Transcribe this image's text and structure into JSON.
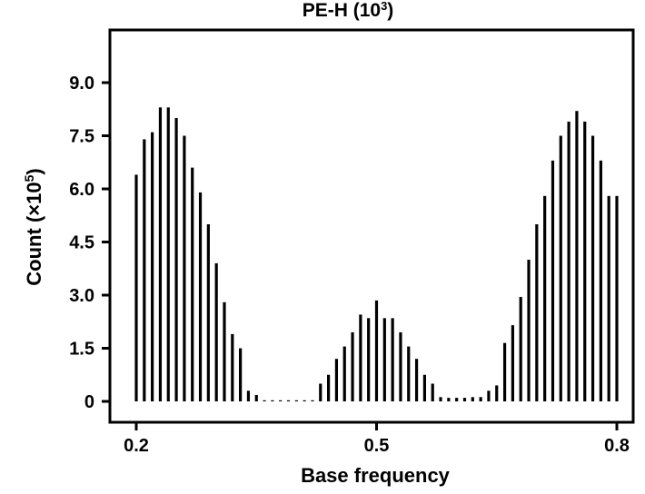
{
  "chart_data": {
    "type": "bar",
    "title": "PE-H (10",
    "title_sup": "3",
    "title_end": ")",
    "xlabel": "Base frequency",
    "ylabel": "Count (×10",
    "ylabel_sup": "5",
    "ylabel_end": ")",
    "xlim": [
      0.2,
      0.8
    ],
    "ylim": [
      0,
      10.2
    ],
    "x_ticks": [
      0.2,
      0.5,
      0.8
    ],
    "x_tick_labels": [
      "0.2",
      "0.5",
      "0.8"
    ],
    "y_ticks": [
      0,
      1.5,
      3.0,
      4.5,
      6.0,
      7.5,
      9.0
    ],
    "y_tick_labels": [
      "0",
      "1.5",
      "3.0",
      "4.5",
      "6.0",
      "7.5",
      "9.0"
    ],
    "grid": false,
    "legend": "none",
    "bar_color": "#000000",
    "x": [
      0.2,
      0.21,
      0.22,
      0.23,
      0.24,
      0.25,
      0.26,
      0.27,
      0.28,
      0.29,
      0.3,
      0.31,
      0.32,
      0.33,
      0.34,
      0.35,
      0.36,
      0.37,
      0.38,
      0.39,
      0.4,
      0.41,
      0.42,
      0.43,
      0.44,
      0.45,
      0.46,
      0.47,
      0.48,
      0.49,
      0.5,
      0.51,
      0.52,
      0.53,
      0.54,
      0.55,
      0.56,
      0.57,
      0.58,
      0.59,
      0.6,
      0.61,
      0.62,
      0.63,
      0.64,
      0.65,
      0.66,
      0.67,
      0.68,
      0.69,
      0.7,
      0.71,
      0.72,
      0.73,
      0.74,
      0.75,
      0.76,
      0.77,
      0.78,
      0.79,
      0.8
    ],
    "values": [
      6.4,
      7.4,
      7.6,
      8.3,
      8.3,
      8.0,
      7.5,
      6.6,
      5.9,
      5.0,
      3.9,
      2.8,
      1.9,
      1.5,
      0.3,
      0.18,
      0.02,
      0.02,
      0.02,
      0.02,
      0.02,
      0.02,
      0.02,
      0.5,
      0.75,
      1.2,
      1.55,
      1.95,
      2.45,
      2.35,
      2.85,
      2.35,
      2.35,
      1.95,
      1.55,
      1.2,
      0.75,
      0.5,
      0.12,
      0.1,
      0.1,
      0.1,
      0.12,
      0.12,
      0.3,
      0.45,
      1.65,
      2.15,
      2.95,
      4.0,
      5.0,
      5.8,
      6.8,
      7.5,
      7.9,
      8.2,
      7.9,
      7.5,
      6.8,
      5.8,
      5.8
    ]
  }
}
